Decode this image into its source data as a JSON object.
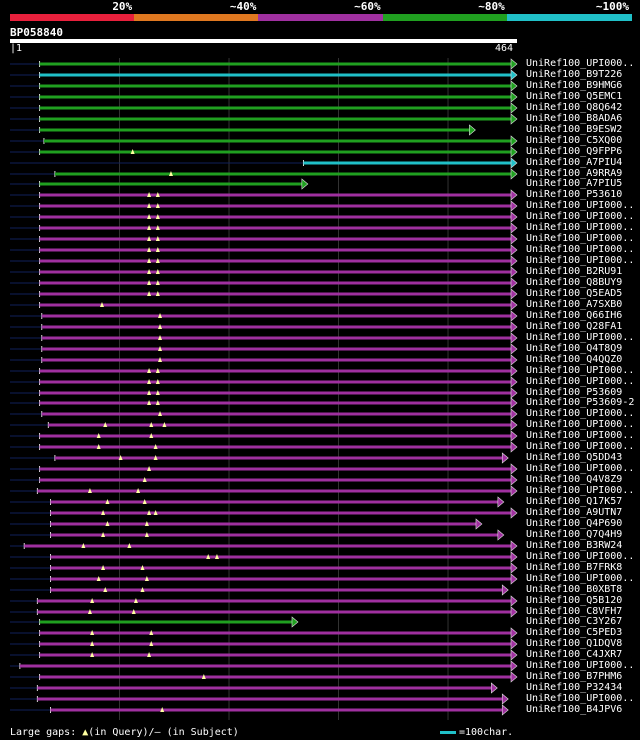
{
  "legend": {
    "segments": [
      {
        "label": "20%",
        "color": "#e8203c"
      },
      {
        "label": "~40%",
        "color": "#e07820"
      },
      {
        "label": "~60%",
        "color": "#a030a0"
      },
      {
        "label": "~80%",
        "color": "#20a020"
      },
      {
        "label": "~100%",
        "color": "#20c0c8"
      }
    ]
  },
  "query": {
    "id": "BP058840",
    "start": "1",
    "end": "464",
    "length": 464
  },
  "footer": {
    "gaps_prefix": "Large gaps:",
    "gaps_query": "(in Query)/",
    "gaps_subject": "– (in Subject)",
    "scale": "=100char."
  },
  "colors": {
    "green": "#20a020",
    "cyan": "#20c0c8",
    "purple": "#a030a0",
    "tail": "#10205a",
    "marker": "#ffffa0"
  },
  "hits": [
    {
      "label": "UniRef100_UPI000..",
      "color": "green",
      "start": 28,
      "end": 464,
      "markers": []
    },
    {
      "label": "UniRef100_B9T226",
      "color": "cyan",
      "start": 28,
      "end": 464,
      "markers": []
    },
    {
      "label": "UniRef100_B9HMG6",
      "color": "green",
      "start": 28,
      "end": 464,
      "markers": []
    },
    {
      "label": "UniRef100_Q5EMC1",
      "color": "green",
      "start": 28,
      "end": 464,
      "markers": []
    },
    {
      "label": "UniRef100_Q8Q642",
      "color": "green",
      "start": 28,
      "end": 464,
      "markers": []
    },
    {
      "label": "UniRef100_B8ADA6",
      "color": "green",
      "start": 28,
      "end": 464,
      "markers": []
    },
    {
      "label": "UniRef100_B9ESW2",
      "color": "green",
      "start": 28,
      "end": 426,
      "markers": []
    },
    {
      "label": "UniRef100_C5XQ00",
      "color": "green",
      "start": 32,
      "end": 464,
      "markers": []
    },
    {
      "label": "UniRef100_Q9FPP6",
      "color": "green",
      "start": 28,
      "end": 464,
      "markers": [
        113
      ]
    },
    {
      "label": "UniRef100_A7PIU4",
      "color": "cyan",
      "start": 269,
      "end": 464,
      "markers": []
    },
    {
      "label": "UniRef100_A9RRA9",
      "color": "green",
      "start": 42,
      "end": 464,
      "markers": [
        148
      ]
    },
    {
      "label": "UniRef100_A7PIU5",
      "color": "green",
      "start": 28,
      "end": 273,
      "markers": []
    },
    {
      "label": "UniRef100_P53610",
      "color": "purple",
      "start": 28,
      "end": 464,
      "markers": [
        128,
        136
      ]
    },
    {
      "label": "UniRef100_UPI000..",
      "color": "purple",
      "start": 28,
      "end": 464,
      "markers": [
        128,
        136
      ]
    },
    {
      "label": "UniRef100_UPI000..",
      "color": "purple",
      "start": 28,
      "end": 464,
      "markers": [
        128,
        136
      ]
    },
    {
      "label": "UniRef100_UPI000..",
      "color": "purple",
      "start": 28,
      "end": 464,
      "markers": [
        128,
        136
      ]
    },
    {
      "label": "UniRef100_UPI000..",
      "color": "purple",
      "start": 28,
      "end": 464,
      "markers": [
        128,
        136
      ]
    },
    {
      "label": "UniRef100_UPI000..",
      "color": "purple",
      "start": 28,
      "end": 464,
      "markers": [
        128,
        136
      ]
    },
    {
      "label": "UniRef100_UPI000..",
      "color": "purple",
      "start": 28,
      "end": 464,
      "markers": [
        128,
        136
      ]
    },
    {
      "label": "UniRef100_B2RU91",
      "color": "purple",
      "start": 28,
      "end": 464,
      "markers": [
        128,
        136
      ]
    },
    {
      "label": "UniRef100_Q8BUY9",
      "color": "purple",
      "start": 28,
      "end": 464,
      "markers": [
        128,
        136
      ]
    },
    {
      "label": "UniRef100_Q5EAD5",
      "color": "purple",
      "start": 28,
      "end": 464,
      "markers": [
        128,
        136
      ]
    },
    {
      "label": "UniRef100_A7SXB0",
      "color": "purple",
      "start": 28,
      "end": 464,
      "markers": [
        85
      ]
    },
    {
      "label": "UniRef100_Q66IH6",
      "color": "purple",
      "start": 30,
      "end": 464,
      "markers": [
        138
      ]
    },
    {
      "label": "UniRef100_Q28FA1",
      "color": "purple",
      "start": 30,
      "end": 464,
      "markers": [
        138
      ]
    },
    {
      "label": "UniRef100_UPI000..",
      "color": "purple",
      "start": 30,
      "end": 464,
      "markers": [
        138
      ]
    },
    {
      "label": "UniRef100_Q4T8Q9",
      "color": "purple",
      "start": 30,
      "end": 464,
      "markers": [
        138
      ]
    },
    {
      "label": "UniRef100_Q4QQZ0",
      "color": "purple",
      "start": 30,
      "end": 464,
      "markers": [
        138
      ]
    },
    {
      "label": "UniRef100_UPI000..",
      "color": "purple",
      "start": 28,
      "end": 464,
      "markers": [
        128,
        136
      ]
    },
    {
      "label": "UniRef100_UPI000..",
      "color": "purple",
      "start": 28,
      "end": 464,
      "markers": [
        128,
        136
      ]
    },
    {
      "label": "UniRef100_P53609",
      "color": "purple",
      "start": 28,
      "end": 464,
      "markers": [
        128,
        136
      ]
    },
    {
      "label": "UniRef100_P53609-2",
      "color": "purple",
      "start": 28,
      "end": 464,
      "markers": [
        128,
        136
      ]
    },
    {
      "label": "UniRef100_UPI000..",
      "color": "purple",
      "start": 30,
      "end": 464,
      "markers": [
        138
      ]
    },
    {
      "label": "UniRef100_UPI000..",
      "color": "purple",
      "start": 36,
      "end": 464,
      "markers": [
        88,
        130,
        142
      ]
    },
    {
      "label": "UniRef100_UPI000..",
      "color": "purple",
      "start": 28,
      "end": 464,
      "markers": [
        82,
        130
      ]
    },
    {
      "label": "UniRef100_UPI000..",
      "color": "purple",
      "start": 28,
      "end": 464,
      "markers": [
        82,
        134
      ]
    },
    {
      "label": "UniRef100_Q5DD43",
      "color": "purple",
      "start": 42,
      "end": 456,
      "markers": [
        102,
        134
      ]
    },
    {
      "label": "UniRef100_UPI000..",
      "color": "purple",
      "start": 28,
      "end": 464,
      "markers": [
        128
      ]
    },
    {
      "label": "UniRef100_Q4V8Z9",
      "color": "purple",
      "start": 28,
      "end": 464,
      "markers": [
        124
      ]
    },
    {
      "label": "UniRef100_UPI000..",
      "color": "purple",
      "start": 26,
      "end": 464,
      "markers": [
        74,
        118
      ]
    },
    {
      "label": "UniRef100_Q17K57",
      "color": "purple",
      "start": 38,
      "end": 452,
      "markers": [
        90,
        124
      ]
    },
    {
      "label": "UniRef100_A9UTN7",
      "color": "purple",
      "start": 38,
      "end": 464,
      "markers": [
        86,
        128,
        134
      ]
    },
    {
      "label": "UniRef100_Q4P690",
      "color": "purple",
      "start": 38,
      "end": 432,
      "markers": [
        90,
        126
      ]
    },
    {
      "label": "UniRef100_Q7Q4H9",
      "color": "purple",
      "start": 38,
      "end": 452,
      "markers": [
        86,
        126
      ]
    },
    {
      "label": "UniRef100_B3RW24",
      "color": "purple",
      "start": 14,
      "end": 464,
      "markers": [
        68,
        110
      ]
    },
    {
      "label": "UniRef100_UPI000..",
      "color": "purple",
      "start": 38,
      "end": 464,
      "markers": [
        182,
        190
      ]
    },
    {
      "label": "UniRef100_B7FRK8",
      "color": "purple",
      "start": 38,
      "end": 464,
      "markers": [
        86,
        122
      ]
    },
    {
      "label": "UniRef100_UPI000..",
      "color": "purple",
      "start": 38,
      "end": 464,
      "markers": [
        82,
        126
      ]
    },
    {
      "label": "UniRef100_B0XBT8",
      "color": "purple",
      "start": 38,
      "end": 456,
      "markers": [
        88,
        122
      ]
    },
    {
      "label": "UniRef100_Q5B120",
      "color": "purple",
      "start": 26,
      "end": 464,
      "markers": [
        76,
        116
      ]
    },
    {
      "label": "UniRef100_C8VFH7",
      "color": "purple",
      "start": 26,
      "end": 464,
      "markers": [
        74,
        114
      ]
    },
    {
      "label": "UniRef100_C3Y267",
      "color": "green",
      "start": 28,
      "end": 264,
      "markers": []
    },
    {
      "label": "UniRef100_C5PED3",
      "color": "purple",
      "start": 28,
      "end": 464,
      "markers": [
        76,
        130
      ]
    },
    {
      "label": "UniRef100_Q1DQV8",
      "color": "purple",
      "start": 28,
      "end": 464,
      "markers": [
        76,
        130
      ]
    },
    {
      "label": "UniRef100_C4JXR7",
      "color": "purple",
      "start": 28,
      "end": 464,
      "markers": [
        76,
        128
      ]
    },
    {
      "label": "UniRef100_UPI000..",
      "color": "purple",
      "start": 10,
      "end": 464,
      "markers": []
    },
    {
      "label": "UniRef100_B7PHM6",
      "color": "purple",
      "start": 28,
      "end": 464,
      "markers": [
        178
      ]
    },
    {
      "label": "UniRef100_P32434",
      "color": "purple",
      "start": 26,
      "end": 446,
      "markers": []
    },
    {
      "label": "UniRef100_UPI000..",
      "color": "purple",
      "start": 26,
      "end": 456,
      "markers": []
    },
    {
      "label": "UniRef100_B4JPV6",
      "color": "purple",
      "start": 38,
      "end": 456,
      "markers": [
        140
      ]
    }
  ]
}
